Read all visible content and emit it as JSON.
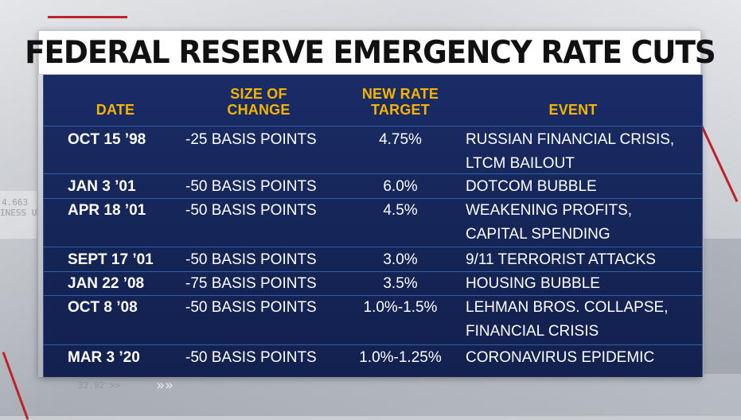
{
  "title": "FEDERAL RESERVE EMERGENCY RATE CUTS",
  "headers": {
    "date": "DATE",
    "size_line1": "SIZE OF",
    "size_line2": "CHANGE",
    "rate_line1": "NEW RATE",
    "rate_line2": "TARGET",
    "event": "EVENT"
  },
  "rows": [
    {
      "date": "OCT 15 ’98",
      "size": "-25 BASIS POINTS",
      "rate": "4.75%",
      "event1": "RUSSIAN FINANCIAL CRISIS,",
      "event2": "LTCM BAILOUT"
    },
    {
      "date": "JAN 3 ’01",
      "size": "-50 BASIS POINTS",
      "rate": "6.0%",
      "event1": "DOTCOM BUBBLE",
      "event2": ""
    },
    {
      "date": "APR 18 ’01",
      "size": "-50 BASIS POINTS",
      "rate": "4.5%",
      "event1": "WEAKENING PROFITS,",
      "event2": "CAPITAL SPENDING"
    },
    {
      "date": "SEPT 17 ’01",
      "size": "-50 BASIS POINTS",
      "rate": "3.0%",
      "event1": "9/11 TERRORIST ATTACKS",
      "event2": ""
    },
    {
      "date": "JAN 22 ’08",
      "size": "-75 BASIS POINTS",
      "rate": "3.5%",
      "event1": "HOUSING BUBBLE",
      "event2": ""
    },
    {
      "date": "OCT 8 ’08",
      "size": "-50 BASIS POINTS",
      "rate": "1.0%-1.5%",
      "event1": "LEHMAN BROS. COLLAPSE,",
      "event2": "FINANCIAL CRISIS"
    },
    {
      "date": "MAR 3 ’20",
      "size": "-50 BASIS POINTS",
      "rate": "1.0%-1.25%",
      "event1": "CORONAVIRUS EPIDEMIC",
      "event2": ""
    }
  ],
  "background": {
    "ticker_left": "4.663",
    "ticker_left2": "INESS U",
    "ticker_bottom": "32.92 >>",
    "chevrons": "»»"
  },
  "colors": {
    "header_accent": "#f4b400",
    "panel": "#142455",
    "row_divider": "#2f63a9",
    "deco_red": "#c0222b"
  }
}
